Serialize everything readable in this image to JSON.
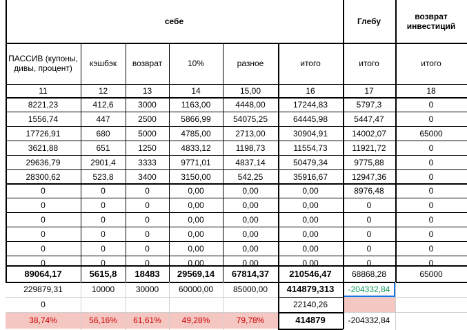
{
  "header": {
    "sebe": "себе",
    "glebu": "Глебу",
    "vozvrat_inv": "возврат инвестиций"
  },
  "col_headers": [
    "ПАССИВ (купоны, дивы, процент)",
    "кэшбэк",
    "возврат",
    "10%",
    "разное",
    "итого",
    "итого",
    "итого"
  ],
  "col_numbers": [
    "11",
    "12",
    "13",
    "14",
    "15,00",
    "16",
    "17",
    "18"
  ],
  "rows": [
    [
      "8221,23",
      "412,6",
      "3000",
      "1163,00",
      "4448,00",
      "17244,83",
      "5797,3",
      "0"
    ],
    [
      "1556,74",
      "447",
      "2500",
      "5866,99",
      "54075,25",
      "64445,98",
      "5447,47",
      "0"
    ],
    [
      "17726,91",
      "680",
      "5000",
      "4785,00",
      "2713,00",
      "30904,91",
      "14002,07",
      "65000"
    ],
    [
      "3621,88",
      "651",
      "1250",
      "4833,12",
      "1198,73",
      "11554,73",
      "11921,72",
      "0"
    ],
    [
      "29636,79",
      "2901,4",
      "3333",
      "9771,01",
      "4837,14",
      "50479,34",
      "9775,88",
      "0"
    ],
    [
      "28300,62",
      "523,8",
      "3400",
      "3150,00",
      "542,25",
      "35916,67",
      "12947,36",
      "0"
    ],
    [
      "0",
      "0",
      "0",
      "0,00",
      "0,00",
      "0,00",
      "8976,48",
      "0"
    ],
    [
      "0",
      "0",
      "0",
      "0,00",
      "0,00",
      "0,00",
      "0",
      "0"
    ],
    [
      "0",
      "0",
      "0",
      "0,00",
      "0,00",
      "0,00",
      "0",
      "0"
    ],
    [
      "0",
      "0",
      "0",
      "0,00",
      "0,00",
      "0,00",
      "0",
      "0"
    ],
    [
      "0",
      "0",
      "0",
      "0,00",
      "0,00",
      "0,00",
      "0",
      "0"
    ],
    [
      "0",
      "0",
      "0",
      "0,00",
      "0,00",
      "0,00",
      "0",
      "0"
    ]
  ],
  "totals": [
    "89064,17",
    "5615,8",
    "18483",
    "29569,14",
    "67814,37",
    "210546,47",
    "68868,28",
    "65000"
  ],
  "extra1": [
    "229879,31",
    "10000",
    "30000",
    "60000,00",
    "85000,00",
    "414879,313",
    "-204332,84",
    ""
  ],
  "extra2": [
    "0",
    "",
    "",
    "",
    "",
    "22140,26",
    "",
    ""
  ],
  "percent": [
    "38,74%",
    "56,16%",
    "61,61%",
    "49,28%",
    "79,78%",
    "414879",
    "-204332,84",
    ""
  ],
  "colors": {
    "pink_fill": "#f4c7c3",
    "pink_text": "#cc0000",
    "green_text": "#0f9d58",
    "selection": "#1a73e8"
  }
}
